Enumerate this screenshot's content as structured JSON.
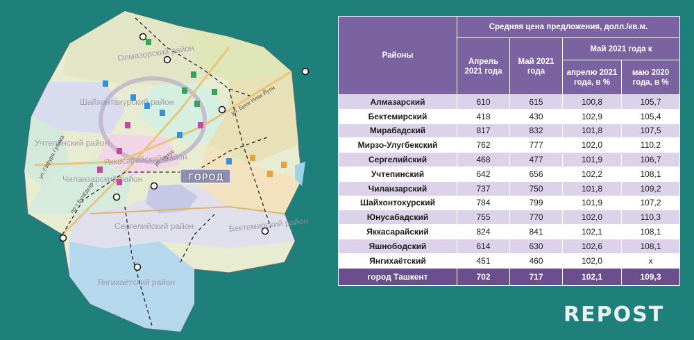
{
  "map": {
    "districts": [
      "Олмазорский район",
      "Шайхантахурский район",
      "Учтепинский район",
      "Яккасарайский район",
      "Чиланзарский район",
      "Сергелийский район",
      "Бектемирский район",
      "Янгихаётский район"
    ],
    "streets": [
      "ул. Гафура Гуляма",
      "пр-т Бунёдкор",
      "ул. Буюк Ипак Йули",
      "ул. Нукус"
    ],
    "city_badge": "ГОРОД",
    "metro_icon": "metro-icon",
    "tram_icon": "tram-icon"
  },
  "table": {
    "header": {
      "districts": "Районы",
      "group_title": "Средняя цена предложения, долл./кв.м.",
      "april": "Апрель 2021 года",
      "may": "Май 2021 года",
      "may_to": "Май 2021 года к",
      "vs_april": "апрелю 2021 года, в %",
      "vs_may": "маю 2020 года, в %"
    },
    "rows": [
      {
        "name": "Алмазарский",
        "april": "610",
        "may": "615",
        "vs_april": "100,8",
        "vs_may": "105,7"
      },
      {
        "name": "Бектемирский",
        "april": "418",
        "may": "430",
        "vs_april": "102,9",
        "vs_may": "105,4"
      },
      {
        "name": "Мирабадский",
        "april": "817",
        "may": "832",
        "vs_april": "101,8",
        "vs_may": "107,5"
      },
      {
        "name": "Мирзо-Улугбекский",
        "april": "762",
        "may": "777",
        "vs_april": "102,0",
        "vs_may": "110,2"
      },
      {
        "name": "Сергелийский",
        "april": "468",
        "may": "477",
        "vs_april": "101,9",
        "vs_may": "106,7"
      },
      {
        "name": "Учтепинский",
        "april": "642",
        "may": "656",
        "vs_april": "102,2",
        "vs_may": "108,1"
      },
      {
        "name": "Чиланзарский",
        "april": "737",
        "may": "750",
        "vs_april": "101,8",
        "vs_may": "109,2"
      },
      {
        "name": "Шайхонтохурский",
        "april": "784",
        "may": "799",
        "vs_april": "101,9",
        "vs_may": "107,2"
      },
      {
        "name": "Юнусабадский",
        "april": "755",
        "may": "770",
        "vs_april": "102,0",
        "vs_may": "110,3"
      },
      {
        "name": "Яккасарайский",
        "april": "824",
        "may": "841",
        "vs_april": "102,1",
        "vs_may": "108,1"
      },
      {
        "name": "Яшнободский",
        "april": "614",
        "may": "630",
        "vs_april": "102,6",
        "vs_may": "108,1"
      },
      {
        "name": "Янгихаётский",
        "april": "451",
        "may": "460",
        "vs_april": "102,0",
        "vs_may": "x"
      }
    ],
    "total": {
      "name": "город Ташкент",
      "april": "702",
      "may": "717",
      "vs_april": "102,1",
      "vs_may": "109,3"
    }
  },
  "watermark": "REPOST",
  "colors": {
    "background": "#1f7f7a",
    "header": "#7b62a0",
    "row_alt": "#dcd3ea",
    "total_row": "#6a4e8e"
  }
}
